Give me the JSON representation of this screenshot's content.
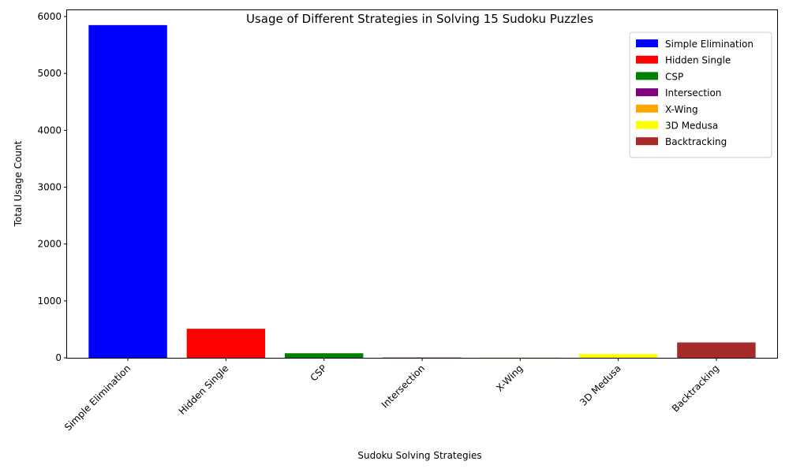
{
  "chart_data": {
    "type": "bar",
    "title": "Usage of Different Strategies in Solving 15 Sudoku Puzzles",
    "xlabel": "Sudoku Solving Strategies",
    "ylabel": "Total Usage Count",
    "categories": [
      "Simple Elimination",
      "Hidden Single",
      "CSP",
      "Intersection",
      "X-Wing",
      "3D Medusa",
      "Backtracking"
    ],
    "values": [
      5850,
      510,
      80,
      5,
      3,
      65,
      270
    ],
    "colors": [
      "#0000ff",
      "#ff0000",
      "#008000",
      "#800080",
      "#ffa500",
      "#ffff00",
      "#a52a2a"
    ],
    "ylim": [
      0,
      6125
    ],
    "yticks": [
      0,
      1000,
      2000,
      3000,
      4000,
      5000,
      6000
    ],
    "legend": {
      "placement": "top-right",
      "entries": [
        "Simple Elimination",
        "Hidden Single",
        "CSP",
        "Intersection",
        "X-Wing",
        "3D Medusa",
        "Backtracking"
      ]
    },
    "grid": false
  }
}
